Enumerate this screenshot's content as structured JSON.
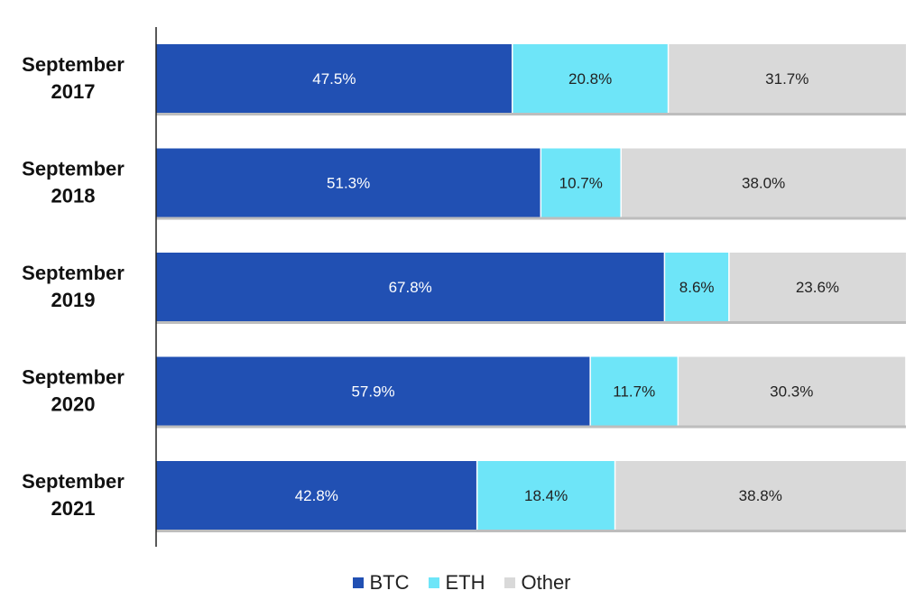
{
  "chart_data": {
    "type": "bar",
    "orientation": "horizontal",
    "stacked": true,
    "categories": [
      "September\n2017",
      "September\n2018",
      "September\n2019",
      "September\n2020",
      "September\n2021"
    ],
    "series": [
      {
        "name": "BTC",
        "color": "#2150b3",
        "values": [
          47.5,
          51.3,
          67.8,
          57.9,
          42.8
        ],
        "labels": [
          "47.5%",
          "51.3%",
          "67.8%",
          "57.9%",
          "42.8%"
        ]
      },
      {
        "name": "ETH",
        "color": "#6ee5f8",
        "values": [
          20.8,
          10.7,
          8.6,
          11.7,
          18.4
        ],
        "labels": [
          "20.8%",
          "10.7%",
          "8.6%",
          "11.7%",
          "18.4%"
        ]
      },
      {
        "name": "Other",
        "color": "#d9d9d9",
        "values": [
          31.7,
          38.0,
          23.6,
          30.3,
          38.8
        ],
        "labels": [
          "31.7%",
          "38.0%",
          "23.6%",
          "30.3%",
          "38.8%"
        ]
      }
    ],
    "xlim": [
      0,
      100
    ],
    "grid": false,
    "legend_position": "bottom-center"
  },
  "legend": {
    "items": [
      {
        "label": "BTC",
        "color": "#2150b3"
      },
      {
        "label": "ETH",
        "color": "#6ee5f8"
      },
      {
        "label": "Other",
        "color": "#d9d9d9"
      }
    ]
  }
}
